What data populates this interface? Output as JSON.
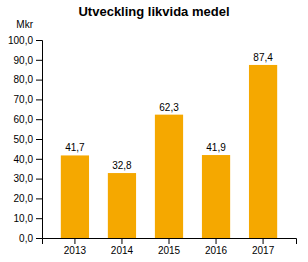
{
  "chart_data": {
    "type": "bar",
    "title": "Utveckling likvida medel",
    "ylabel": "Mkr",
    "categories": [
      "2013",
      "2014",
      "2015",
      "2016",
      "2017"
    ],
    "values": [
      41.7,
      32.8,
      62.3,
      41.9,
      87.4
    ],
    "value_labels": [
      "41,7",
      "32,8",
      "62,3",
      "41,9",
      "87,4"
    ],
    "color": "#F5A800",
    "ylim": [
      0,
      100
    ],
    "yticks": [
      {
        "value": 0.0,
        "label": "0,0"
      },
      {
        "value": 10.0,
        "label": "10,0"
      },
      {
        "value": 20.0,
        "label": "20,0"
      },
      {
        "value": 30.0,
        "label": "30,0"
      },
      {
        "value": 40.0,
        "label": "40,0"
      },
      {
        "value": 50.0,
        "label": "50,0"
      },
      {
        "value": 60.0,
        "label": "60,0"
      },
      {
        "value": 70.0,
        "label": "70,0"
      },
      {
        "value": 80.0,
        "label": "80,0"
      },
      {
        "value": 90.0,
        "label": "90,0"
      },
      {
        "value": 100.0,
        "label": "100,0"
      }
    ],
    "grid": false,
    "data_labels": true
  }
}
